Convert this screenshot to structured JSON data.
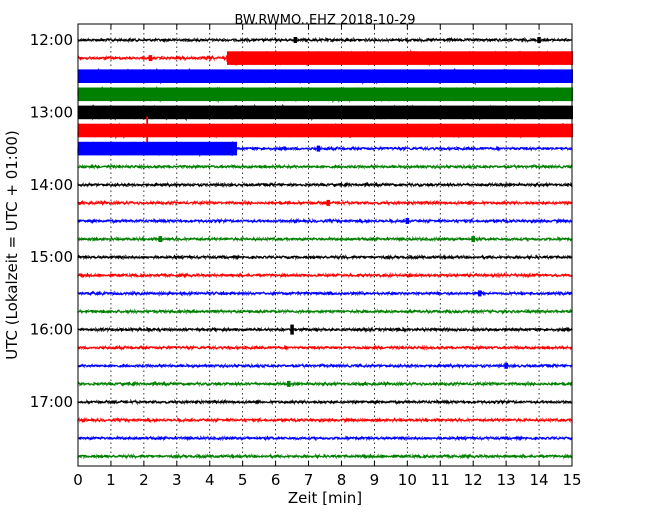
{
  "chart_data": {
    "type": "line",
    "title": "BW.RWMO..EHZ 2018-10-29",
    "xlabel": "Zeit  [min]",
    "ylabel": "UTC (Lokalzeit = UTC + 01:00)",
    "xlim": [
      0,
      15
    ],
    "x_ticks": [
      0,
      1,
      2,
      3,
      4,
      5,
      6,
      7,
      8,
      9,
      10,
      11,
      12,
      13,
      14,
      15
    ],
    "x_tick_labels": [
      "0",
      "1",
      "2",
      "3",
      "4",
      "5",
      "6",
      "7",
      "8",
      "9",
      "10",
      "11",
      "12",
      "13",
      "14",
      "15"
    ],
    "y_tick_labels": [
      "12:00",
      "13:00",
      "14:00",
      "15:00",
      "16:00",
      "17:00"
    ],
    "grid": "vertical dotted",
    "trace_interval_min": 15,
    "traces": [
      {
        "start": "12:00",
        "color": "#000000",
        "amplitude": "low",
        "events": [
          {
            "minute": 6.6,
            "size": "small"
          },
          {
            "minute": 14.0,
            "size": "small"
          }
        ]
      },
      {
        "start": "12:15",
        "color": "#ff0000",
        "amplitude": "low",
        "high_from_minute": 4.5,
        "events": [
          {
            "minute": 2.2,
            "size": "small"
          }
        ]
      },
      {
        "start": "12:30",
        "color": "#0000ff",
        "amplitude": "high",
        "events": []
      },
      {
        "start": "12:45",
        "color": "#008000",
        "amplitude": "high",
        "events": []
      },
      {
        "start": "13:00",
        "color": "#000000",
        "amplitude": "high",
        "events": []
      },
      {
        "start": "13:15",
        "color": "#ff0000",
        "amplitude": "high",
        "events": [
          {
            "minute": 2.1,
            "size": "large"
          }
        ]
      },
      {
        "start": "13:30",
        "color": "#0000ff",
        "amplitude": "high",
        "high_until_minute": 4.8,
        "events": [
          {
            "minute": 7.3,
            "size": "small"
          }
        ]
      },
      {
        "start": "13:45",
        "color": "#008000",
        "amplitude": "low",
        "events": []
      },
      {
        "start": "14:00",
        "color": "#000000",
        "amplitude": "low",
        "events": []
      },
      {
        "start": "14:15",
        "color": "#ff0000",
        "amplitude": "low",
        "events": [
          {
            "minute": 7.6,
            "size": "small"
          }
        ]
      },
      {
        "start": "14:30",
        "color": "#0000ff",
        "amplitude": "low",
        "events": [
          {
            "minute": 10.0,
            "size": "small"
          }
        ]
      },
      {
        "start": "14:45",
        "color": "#008000",
        "amplitude": "low",
        "events": [
          {
            "minute": 2.5,
            "size": "small"
          },
          {
            "minute": 12.0,
            "size": "small"
          }
        ]
      },
      {
        "start": "15:00",
        "color": "#000000",
        "amplitude": "low",
        "events": []
      },
      {
        "start": "15:15",
        "color": "#ff0000",
        "amplitude": "low",
        "events": []
      },
      {
        "start": "15:30",
        "color": "#0000ff",
        "amplitude": "low",
        "events": [
          {
            "minute": 12.2,
            "size": "small"
          }
        ]
      },
      {
        "start": "15:45",
        "color": "#008000",
        "amplitude": "low",
        "events": []
      },
      {
        "start": "16:00",
        "color": "#000000",
        "amplitude": "low",
        "events": [
          {
            "minute": 6.5,
            "size": "medium"
          }
        ]
      },
      {
        "start": "16:15",
        "color": "#ff0000",
        "amplitude": "low",
        "events": []
      },
      {
        "start": "16:30",
        "color": "#0000ff",
        "amplitude": "low",
        "events": [
          {
            "minute": 13.0,
            "size": "small"
          }
        ]
      },
      {
        "start": "16:45",
        "color": "#008000",
        "amplitude": "low",
        "events": [
          {
            "minute": 6.4,
            "size": "small"
          }
        ]
      },
      {
        "start": "17:00",
        "color": "#000000",
        "amplitude": "low",
        "events": []
      },
      {
        "start": "17:15",
        "color": "#ff0000",
        "amplitude": "low",
        "events": []
      },
      {
        "start": "17:30",
        "color": "#0000ff",
        "amplitude": "low",
        "events": []
      },
      {
        "start": "17:45",
        "color": "#008000",
        "amplitude": "low",
        "events": []
      }
    ]
  }
}
